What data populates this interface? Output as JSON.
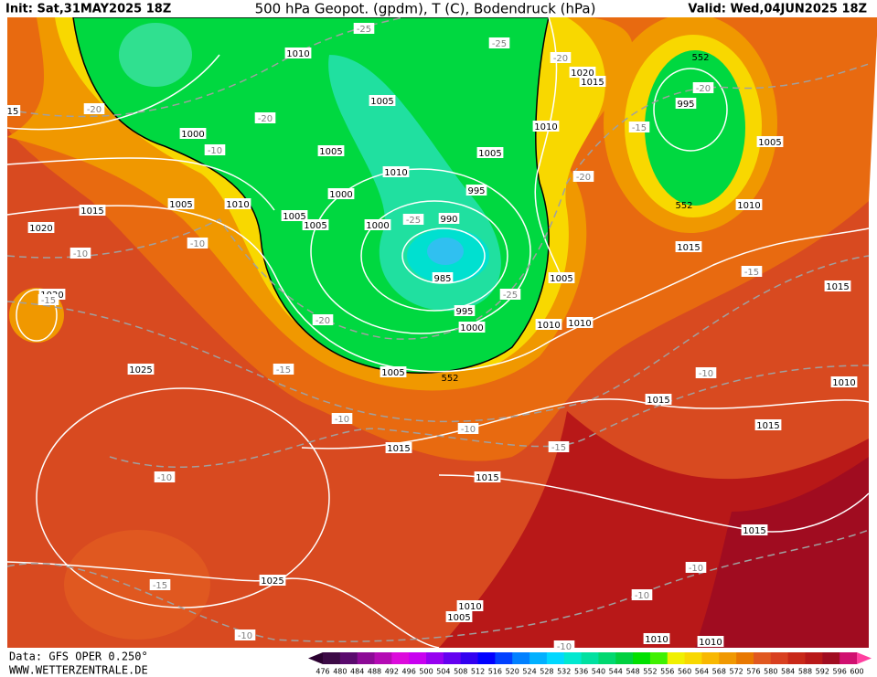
{
  "header": {
    "init": "Init: Sat,31MAY2025 18Z",
    "title": "500 hPa Geopot. (gpdm), T (C), Bodendruck (hPa)",
    "valid": "Valid: Wed,04JUN2025 18Z"
  },
  "footer": {
    "data": "Data: GFS OPER 0.250°",
    "site": "WWW.WETTERZENTRALE.DE"
  },
  "map": {
    "pressure_labels": [
      "1010",
      "1005",
      "1000",
      "1005",
      "1010",
      "1000",
      "1005",
      "1005",
      "1010",
      "1005",
      "1015",
      "1020",
      "1020",
      "1000",
      "990",
      "995",
      "985",
      "995",
      "1000",
      "1005",
      "1010",
      "1020",
      "1015",
      "995",
      "1005",
      "1010",
      "1015",
      "1005",
      "1010",
      "1010",
      "1015",
      "1010",
      "1015",
      "1015",
      "1005",
      "1025",
      "1015",
      "1015",
      "1015",
      "1025",
      "1010",
      "1005",
      "1010",
      "1010",
      "15"
    ],
    "temperature_labels": [
      "-25",
      "-25",
      "-20",
      "-20",
      "-20",
      "-20",
      "-10",
      "-15",
      "-20",
      "-10",
      "-10",
      "-15",
      "-25",
      "-25",
      "-20",
      "-15",
      "-10",
      "-10",
      "-15",
      "-10",
      "-15",
      "-10",
      "-15",
      "-10",
      "-10",
      "-10",
      "-10"
    ],
    "height_labels": [
      "552",
      "552",
      "552"
    ]
  },
  "colorbar": {
    "labels": [
      "476",
      "480",
      "484",
      "488",
      "492",
      "496",
      "500",
      "504",
      "508",
      "512",
      "516",
      "520",
      "524",
      "528",
      "532",
      "536",
      "540",
      "544",
      "548",
      "552",
      "556",
      "560",
      "564",
      "568",
      "572",
      "576",
      "580",
      "584",
      "588",
      "592",
      "596",
      "600"
    ],
    "colors": [
      "#3c0a46",
      "#5a0a6e",
      "#8c0a96",
      "#b40ab4",
      "#dc0adc",
      "#c800f0",
      "#9600f0",
      "#6400f0",
      "#3200f0",
      "#0000ff",
      "#0040ff",
      "#0080ff",
      "#00b0ff",
      "#00d8ff",
      "#00e8d0",
      "#00e0a0",
      "#00d870",
      "#00d040",
      "#00e000",
      "#40f000",
      "#f0f000",
      "#f8d800",
      "#f8b800",
      "#f09800",
      "#e87800",
      "#e05820",
      "#d84020",
      "#c82818",
      "#b81818",
      "#a00c20",
      "#d01070"
    ],
    "under_color": "#2a0030",
    "over_color": "#ff40a0"
  }
}
